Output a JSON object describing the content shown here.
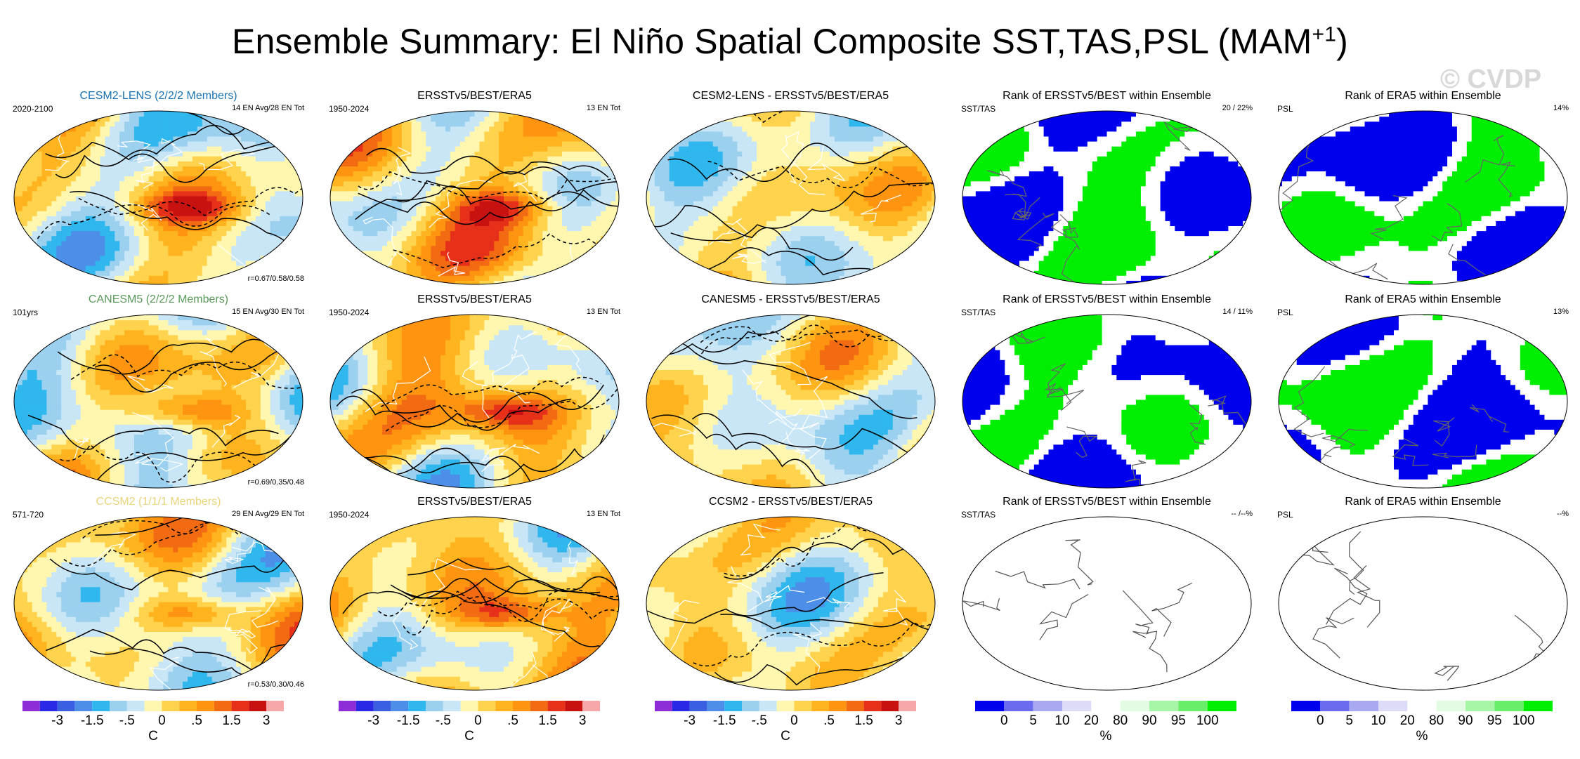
{
  "title": "Ensemble Summary: El Niño Spatial Composite SST,TAS,PSL (MAM",
  "title_superscript": "+1",
  "title_close": ")",
  "watermark": "© CVDP",
  "colors": {
    "sst_scale": [
      "#8e2dd8",
      "#2a2ae6",
      "#3a5fe0",
      "#4d8fe8",
      "#2fb7ee",
      "#9bd0ef",
      "#c9e6f6",
      "#fff7b0",
      "#ffd34d",
      "#ffb41f",
      "#ff9410",
      "#f26a12",
      "#e6301a",
      "#c81212",
      "#f7a7a7"
    ],
    "rank_scale": [
      "#0000ee",
      "#6b6bf0",
      "#a9a9f2",
      "#dcdcf8",
      "#ffffff",
      "#e3fbe3",
      "#a7f5a7",
      "#69ee69",
      "#00ee00"
    ],
    "land_contour": "#ffffff",
    "psl_contour": "#000000",
    "rank_low": "#0000ee",
    "rank_high": "#00ee00"
  },
  "chart_data": [
    {
      "type": "heatmap",
      "title": "CESM2-LENS (2/2/2 Members)",
      "title_color": "#1a73b5",
      "left_label": "2020-2100",
      "right_label": "14 EN Avg/28 EN Tot",
      "stat": "r=0.67/0.58/0.58"
    },
    {
      "type": "heatmap",
      "title": "ERSSTv5/BEST/ERA5",
      "title_color": "#000000",
      "left_label": "1950-2024",
      "right_label": "13 EN Tot",
      "stat": ""
    },
    {
      "type": "heatmap",
      "title": "CESM2-LENS - ERSSTv5/BEST/ERA5",
      "title_color": "#000000",
      "left_label": "",
      "right_label": "",
      "stat": ""
    },
    {
      "type": "heatmap",
      "title": "Rank of ERSSTv5/BEST within Ensemble",
      "title_color": "#000000",
      "left_label": "SST/TAS",
      "right_label": "20 /  22%",
      "stat": ""
    },
    {
      "type": "heatmap",
      "title": "Rank of ERA5 within Ensemble",
      "title_color": "#000000",
      "left_label": "PSL",
      "right_label": "14%",
      "stat": ""
    },
    {
      "type": "heatmap",
      "title": "CANESM5 (2/2/2 Members)",
      "title_color": "#5a9a5a",
      "left_label": "101yrs",
      "right_label": "15 EN Avg/30 EN Tot",
      "stat": "r=0.69/0.35/0.48"
    },
    {
      "type": "heatmap",
      "title": "ERSSTv5/BEST/ERA5",
      "title_color": "#000000",
      "left_label": "1950-2024",
      "right_label": "13 EN Tot",
      "stat": ""
    },
    {
      "type": "heatmap",
      "title": "CANESM5 - ERSSTv5/BEST/ERA5",
      "title_color": "#000000",
      "left_label": "",
      "right_label": "",
      "stat": ""
    },
    {
      "type": "heatmap",
      "title": "Rank of ERSSTv5/BEST within Ensemble",
      "title_color": "#000000",
      "left_label": "SST/TAS",
      "right_label": "14 /  11%",
      "stat": ""
    },
    {
      "type": "heatmap",
      "title": "Rank of ERA5 within Ensemble",
      "title_color": "#000000",
      "left_label": "PSL",
      "right_label": "13%",
      "stat": ""
    },
    {
      "type": "heatmap",
      "title": "CCSM2 (1/1/1 Members)",
      "title_color": "#e8d47a",
      "left_label": "571-720",
      "right_label": "29 EN Avg/29 EN Tot",
      "stat": "r=0.53/0.30/0.46"
    },
    {
      "type": "heatmap",
      "title": "ERSSTv5/BEST/ERA5",
      "title_color": "#000000",
      "left_label": "1950-2024",
      "right_label": "13 EN Tot",
      "stat": ""
    },
    {
      "type": "heatmap",
      "title": "CCSM2 - ERSSTv5/BEST/ERA5",
      "title_color": "#000000",
      "left_label": "",
      "right_label": "",
      "stat": ""
    },
    {
      "type": "heatmap",
      "title": "Rank of ERSSTv5/BEST within Ensemble",
      "title_color": "#000000",
      "left_label": "SST/TAS",
      "right_label": "-- /--%",
      "stat": ""
    },
    {
      "type": "heatmap",
      "title": "Rank of ERA5 within Ensemble",
      "title_color": "#000000",
      "left_label": "PSL",
      "right_label": "--%",
      "stat": ""
    }
  ],
  "colorbars": {
    "sst": {
      "ticks": [
        "-3",
        "-1.5",
        "-.5",
        "0",
        ".5",
        "1.5",
        "3"
      ],
      "unit": "C"
    },
    "rank": {
      "ticks": [
        "0",
        "5",
        "10",
        "20",
        "80",
        "90",
        "95",
        "100"
      ],
      "unit": "%"
    }
  }
}
